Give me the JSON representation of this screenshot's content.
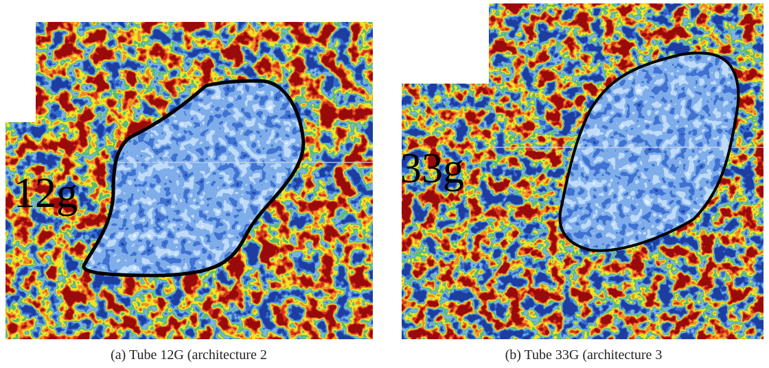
{
  "panels": [
    {
      "label": "12g",
      "caption": "(a) Tube 12G (architecture 2"
    },
    {
      "label": "33g",
      "caption": "(b) Tube 33G (architecture 3"
    }
  ]
}
